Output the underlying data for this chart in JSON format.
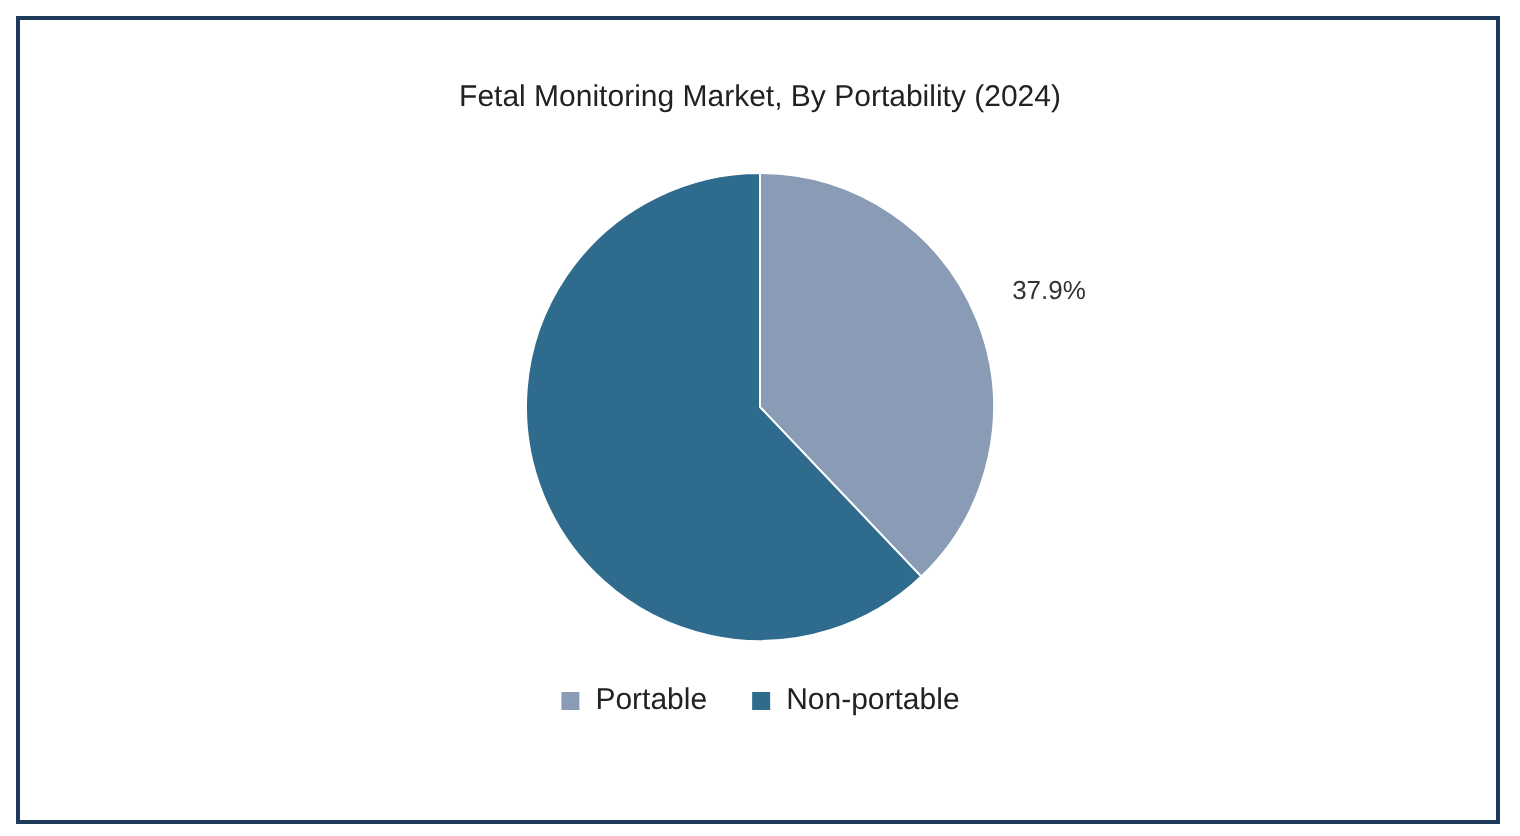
{
  "chart_data": {
    "type": "pie",
    "title": "Fetal Monitoring Market, By Portability (2024)",
    "categories": [
      "Portable",
      "Non-portable"
    ],
    "values": [
      37.9,
      62.1
    ],
    "colors": [
      "#8a9bb5",
      "#2e6b8c"
    ],
    "value_labels": [
      "37.9%",
      null
    ],
    "legend": "bottom"
  }
}
